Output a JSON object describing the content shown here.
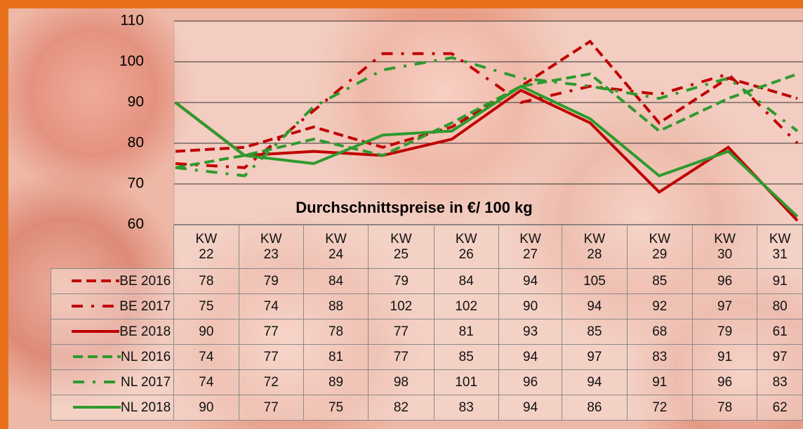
{
  "chart_data": {
    "type": "line",
    "title": "Durchschnittspreise in €/ 100 kg",
    "categories": [
      "KW 22",
      "KW 23",
      "KW 24",
      "KW 25",
      "KW 26",
      "KW 27",
      "KW 28",
      "KW 29",
      "KW 30",
      "KW 31"
    ],
    "ylim": [
      60,
      110
    ],
    "yticks": [
      60,
      70,
      80,
      90,
      100,
      110
    ],
    "grid": true,
    "series": [
      {
        "name": "BE 2016",
        "color": "#c00000",
        "dash": "dashed",
        "values": [
          78,
          79,
          84,
          79,
          84,
          94,
          105,
          85,
          96,
          91
        ]
      },
      {
        "name": "BE 2017",
        "color": "#c00000",
        "dash": "dashdot",
        "values": [
          75,
          74,
          88,
          102,
          102,
          90,
          94,
          92,
          97,
          80
        ]
      },
      {
        "name": "BE 2018",
        "color": "#c00000",
        "dash": "solid",
        "values": [
          90,
          77,
          78,
          77,
          81,
          93,
          85,
          68,
          79,
          61
        ]
      },
      {
        "name": "NL 2016",
        "color": "#2e9a2e",
        "dash": "dashed",
        "values": [
          74,
          77,
          81,
          77,
          85,
          94,
          97,
          83,
          91,
          97
        ]
      },
      {
        "name": "NL 2017",
        "color": "#2e9a2e",
        "dash": "dashdot",
        "values": [
          74,
          72,
          89,
          98,
          101,
          96,
          94,
          91,
          96,
          83
        ]
      },
      {
        "name": "NL 2018",
        "color": "#2e9a2e",
        "dash": "solid",
        "values": [
          90,
          77,
          75,
          82,
          83,
          94,
          86,
          72,
          78,
          62
        ]
      }
    ]
  }
}
